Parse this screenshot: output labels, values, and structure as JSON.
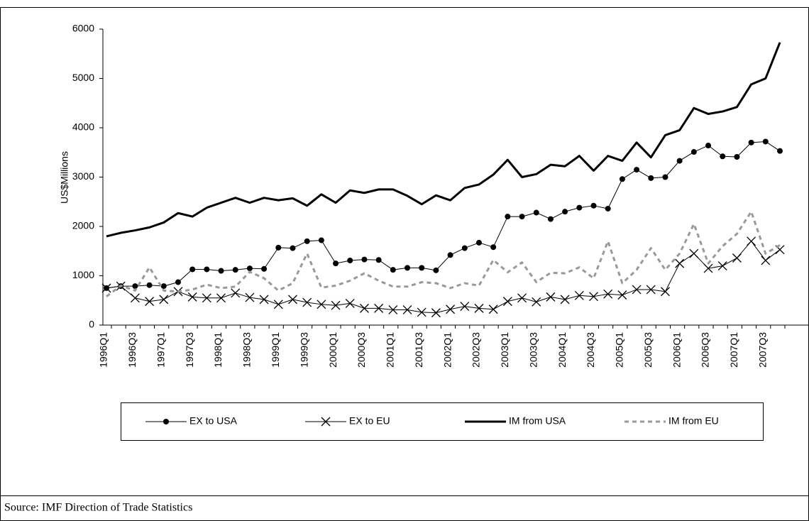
{
  "chart_data": {
    "type": "line",
    "ylabel": "US$Millions",
    "categories": [
      "1996Q1",
      null,
      "1996Q3",
      null,
      "1997Q1",
      null,
      "1997Q3",
      null,
      "1998Q1",
      null,
      "1998Q3",
      null,
      "1999Q1",
      null,
      "1999Q3",
      null,
      "2000Q1",
      null,
      "2000Q3",
      null,
      "2001Q1",
      null,
      "2001Q3",
      null,
      "2002Q1",
      null,
      "2002Q3",
      null,
      "2003Q1",
      null,
      "2003Q3",
      null,
      "2004Q1",
      null,
      "2004Q3",
      null,
      "2005Q1",
      null,
      "2005Q3",
      null,
      "2006Q1",
      null,
      "2006Q3",
      null,
      "2007Q1",
      null,
      "2007Q3",
      null
    ],
    "series": [
      {
        "name": "EX to USA",
        "color": "#000000",
        "marker": "circle",
        "dash": false,
        "line_width": 1,
        "values": [
          750,
          790,
          790,
          810,
          790,
          870,
          1130,
          1130,
          1100,
          1120,
          1150,
          1140,
          1570,
          1560,
          1700,
          1720,
          1250,
          1310,
          1330,
          1320,
          1120,
          1160,
          1160,
          1110,
          1420,
          1560,
          1670,
          1580,
          2200,
          2200,
          2280,
          2150,
          2300,
          2380,
          2420,
          2360,
          2960,
          3150,
          2980,
          3000,
          3330,
          3510,
          3640,
          3420,
          3410,
          3700,
          3720,
          3530
        ]
      },
      {
        "name": "EX to EU",
        "color": "#000000",
        "marker": "x",
        "dash": false,
        "line_width": 1,
        "values": [
          750,
          790,
          550,
          480,
          520,
          680,
          570,
          550,
          550,
          650,
          560,
          520,
          420,
          520,
          460,
          420,
          400,
          440,
          340,
          340,
          310,
          310,
          260,
          250,
          320,
          380,
          340,
          320,
          480,
          550,
          470,
          570,
          520,
          600,
          580,
          630,
          610,
          720,
          720,
          680,
          1250,
          1450,
          1150,
          1200,
          1360,
          1700,
          1310,
          1530
        ]
      },
      {
        "name": "IM from USA",
        "color": "#000000",
        "marker": "none",
        "dash": false,
        "line_width": 3,
        "values": [
          1800,
          1870,
          1920,
          1980,
          2080,
          2270,
          2200,
          2380,
          2480,
          2580,
          2480,
          2580,
          2530,
          2570,
          2420,
          2650,
          2480,
          2730,
          2680,
          2750,
          2750,
          2620,
          2450,
          2630,
          2530,
          2780,
          2850,
          3050,
          3350,
          3000,
          3060,
          3250,
          3220,
          3430,
          3130,
          3430,
          3330,
          3700,
          3400,
          3850,
          3950,
          4400,
          4280,
          4330,
          4420,
          4880,
          5000,
          5730
        ]
      },
      {
        "name": "IM from EU",
        "color": "#999999",
        "marker": "none",
        "dash": true,
        "line_width": 3,
        "values": [
          580,
          800,
          700,
          1170,
          700,
          680,
          720,
          820,
          750,
          780,
          1080,
          950,
          700,
          850,
          1450,
          760,
          800,
          900,
          1050,
          900,
          780,
          780,
          870,
          850,
          750,
          850,
          800,
          1320,
          1070,
          1270,
          870,
          1060,
          1050,
          1170,
          950,
          1700,
          850,
          1120,
          1560,
          1120,
          1450,
          2050,
          1250,
          1600,
          1850,
          2300,
          1450,
          1620
        ]
      }
    ],
    "ylim": [
      0,
      6000
    ],
    "yticks": [
      0,
      1000,
      2000,
      3000,
      4000,
      5000,
      6000
    ],
    "legend": "bottom",
    "source": "Source:  IMF Direction of Trade Statistics"
  }
}
